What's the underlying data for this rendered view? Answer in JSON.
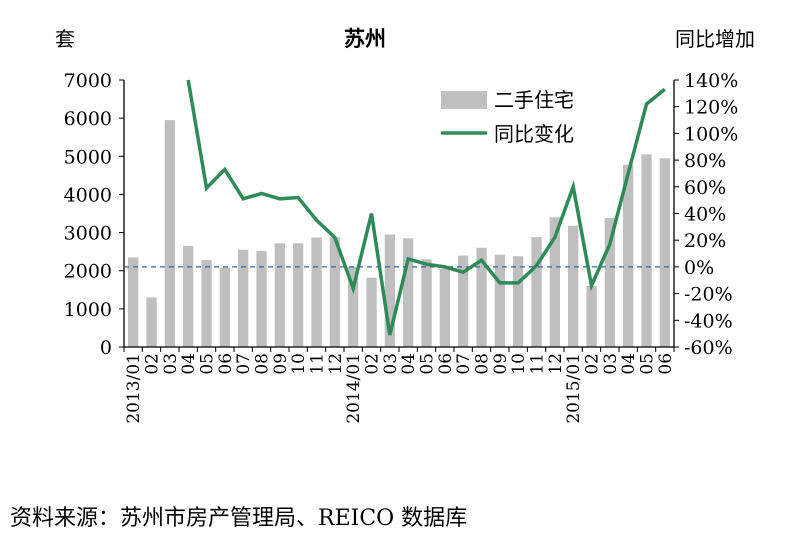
{
  "chart_data": {
    "type": "bar+line",
    "title": "苏州",
    "y_left_unit": "套",
    "y_right_unit": "同比增加",
    "y_left_ticks": [
      "7000",
      "6000",
      "5000",
      "4000",
      "3000",
      "2000",
      "1000",
      "0"
    ],
    "y_right_ticks": [
      "140%",
      "120%",
      "100%",
      "80%",
      "60%",
      "40%",
      "20%",
      "0%",
      "-20%",
      "-40%",
      "-60%"
    ],
    "ylim_left": [
      0,
      7000
    ],
    "ylim_right": [
      -60,
      140
    ],
    "x_tick_labels": [
      "2013/01",
      "02",
      "03",
      "04",
      "05",
      "06",
      "07",
      "08",
      "09",
      "10",
      "11",
      "12",
      "2014/01",
      "02",
      "03",
      "04",
      "05",
      "06",
      "07",
      "08",
      "09",
      "10",
      "11",
      "12",
      "2015/01",
      "02",
      "03",
      "04",
      "05",
      "06"
    ],
    "legend_position": "top-right",
    "series": [
      {
        "name": "二手住宅",
        "type": "bar",
        "axis": "left",
        "color": "#bfbfbf",
        "values": [
          2350,
          1300,
          5950,
          2650,
          2280,
          2080,
          2550,
          2520,
          2720,
          2720,
          2870,
          2880,
          2100,
          1820,
          2950,
          2850,
          2300,
          2050,
          2400,
          2600,
          2420,
          2380,
          2880,
          3400,
          3180,
          1600,
          3380,
          4780,
          5050,
          4950
        ]
      },
      {
        "name": "同比变化",
        "type": "line",
        "axis": "right",
        "color": "#2e8b57",
        "values": [
          null,
          null,
          null,
          140,
          59,
          73,
          51,
          55,
          51,
          52,
          35,
          22,
          -16,
          40,
          -51,
          6,
          2,
          0,
          -4,
          5,
          -12,
          -12,
          1,
          22,
          60,
          -14,
          17,
          70,
          122,
          133
        ]
      }
    ],
    "reference_line": {
      "axis": "right",
      "value": 0,
      "style": "dashed",
      "color": "#3a5fa8"
    }
  },
  "source_text": "资料来源：苏州市房产管理局、REICO 数据库"
}
